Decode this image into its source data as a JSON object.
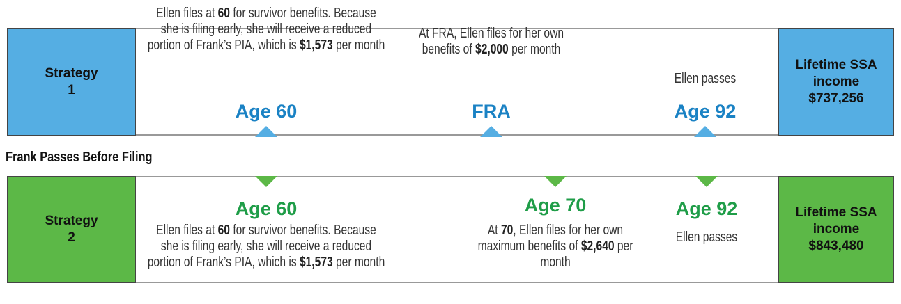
{
  "heading": "Frank Passes Before Filing",
  "strategies": [
    {
      "label": "Strategy 1",
      "events": [
        {
          "marker": "Age 60",
          "description": [
            "Ellen files at ",
            "60",
            " for survivor benefits. Because she is filing early, she will receive a reduced portion of Frank’s PIA, which is ",
            "$1,573",
            " per month"
          ]
        },
        {
          "marker": "FRA",
          "description": [
            "At FRA, Ellen files for her own benefits of ",
            "$2,000",
            " per month"
          ]
        },
        {
          "marker": "Age 92",
          "description": [
            "Ellen passes"
          ]
        }
      ],
      "result": {
        "label": "Lifetime SSA income",
        "amount": "$737,256"
      }
    },
    {
      "label": "Strategy 2",
      "events": [
        {
          "marker": "Age 60",
          "description": [
            "Ellen files at ",
            "60",
            " for survivor benefits. Because she is filing early, she will receive a reduced portion of Frank’s PIA, which is ",
            "$1,573",
            " per month"
          ]
        },
        {
          "marker": "Age 70",
          "description": [
            "At ",
            "70",
            ", Ellen files for her own maximum benefits of ",
            "$2,640",
            " per month"
          ]
        },
        {
          "marker": "Age 92",
          "description": [
            "Ellen passes"
          ]
        }
      ],
      "result": {
        "label": "Lifetime SSA income",
        "amount": "$843,480"
      }
    }
  ]
}
